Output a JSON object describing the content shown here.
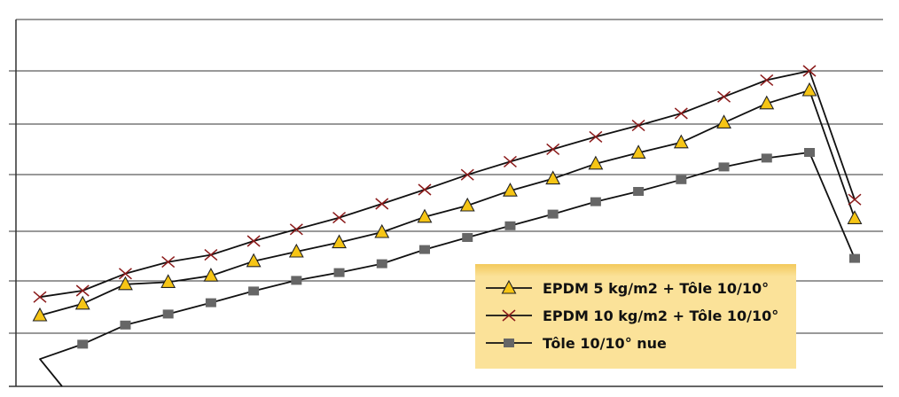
{
  "chart_data": {
    "type": "line",
    "title": "",
    "xlabel": "",
    "ylabel": "",
    "legend": {
      "placement": "bottom-right",
      "background": "#fbe299",
      "background_edge": "#f3c95c"
    },
    "grid": true,
    "axis_color": "#222222",
    "grid_color": "#333333",
    "x": [
      1,
      2,
      3,
      4,
      5,
      6,
      7,
      8,
      9,
      10,
      11,
      12,
      13,
      14,
      15,
      16,
      17,
      18,
      19,
      20
    ],
    "series": [
      {
        "name": "EPDM 5 kg/m2 + Tôle 10/10°",
        "marker": "triangle",
        "marker_fill": "#f6c515",
        "values": [
          20.0,
          23.3,
          28.8,
          29.4,
          31.2,
          35.3,
          38.0,
          40.6,
          43.5,
          47.8,
          51.0,
          55.2,
          58.6,
          62.8,
          65.9,
          68.8,
          74.4,
          79.8,
          83.5,
          47.4
        ]
      },
      {
        "name": "EPDM 10 kg/m2 + Tôle 10/10°",
        "marker": "x",
        "marker_color": "#8b1a1a",
        "values": [
          25.2,
          27.0,
          31.8,
          35.1,
          37.1,
          41.0,
          44.3,
          47.6,
          51.5,
          55.5,
          59.7,
          63.4,
          66.9,
          70.4,
          73.6,
          77.0,
          81.7,
          86.4,
          89.0,
          52.7
        ]
      },
      {
        "name": "Tôle 10/10° nue",
        "marker": "square",
        "marker_fill": "#666666",
        "values": [
          7.7,
          11.9,
          17.3,
          20.4,
          23.6,
          26.9,
          29.9,
          32.1,
          34.6,
          38.6,
          42.0,
          45.3,
          48.6,
          52.1,
          55.0,
          58.3,
          61.9,
          64.4,
          66.0,
          36.1
        ]
      }
    ]
  }
}
